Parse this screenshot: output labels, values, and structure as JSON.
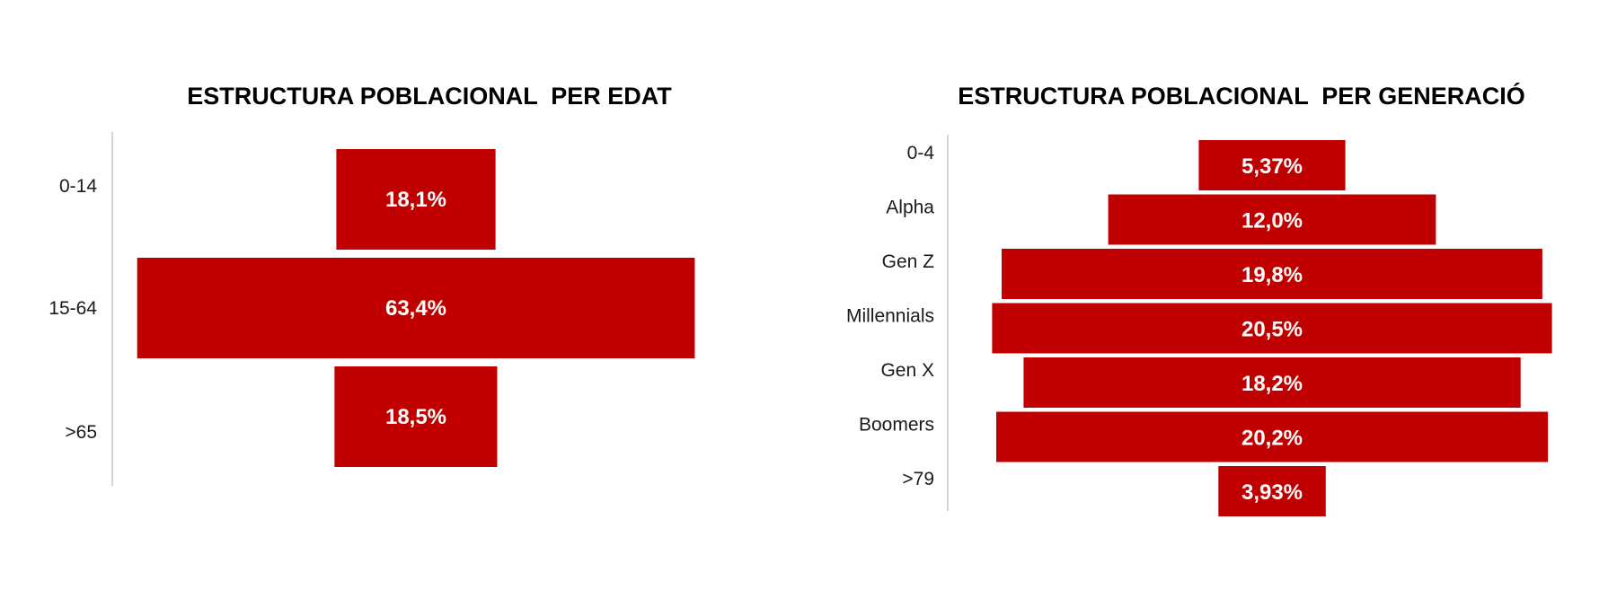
{
  "chart_data": [
    {
      "type": "bar",
      "orientation": "horizontal",
      "title": "ESTRUCTURA POBLACIONAL  PER EDAT",
      "categories": [
        "0-14",
        "15-64",
        ">65"
      ],
      "values": [
        18.1,
        63.4,
        18.5
      ],
      "value_labels": [
        "18,1%",
        "63,4%",
        "18,5%"
      ],
      "xlabel": "",
      "ylabel": "",
      "grid": false,
      "legend": "none",
      "bar_color": "#C00000",
      "value_label_color": "#FFFFFF"
    },
    {
      "type": "bar",
      "orientation": "horizontal",
      "title": "ESTRUCTURA POBLACIONAL  PER GENERACIÓ",
      "categories": [
        "0-4",
        "Alpha",
        "Gen Z",
        "Millennials",
        "Gen X",
        "Boomers",
        ">79"
      ],
      "values": [
        5.37,
        12.0,
        19.8,
        20.5,
        18.2,
        20.2,
        3.93
      ],
      "value_labels": [
        "5,37%",
        "12,0%",
        "19,8%",
        "20,5%",
        "18,2%",
        "20,2%",
        "3,93%"
      ],
      "xlabel": "",
      "ylabel": "",
      "grid": false,
      "legend": "none",
      "bar_color": "#C00000",
      "value_label_color": "#FFFFFF"
    }
  ]
}
